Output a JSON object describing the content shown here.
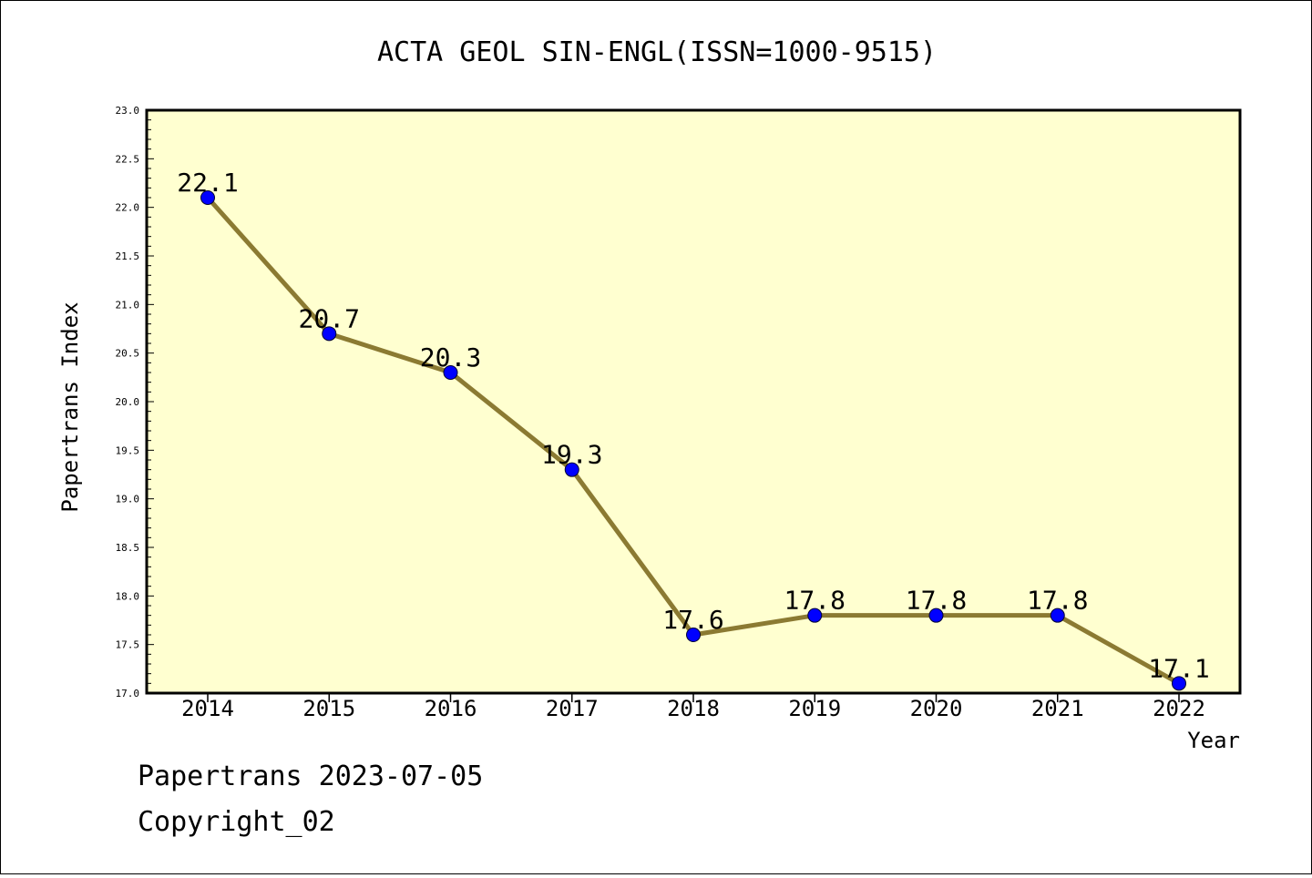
{
  "chart_data": {
    "type": "line",
    "title": "ACTA GEOL SIN-ENGL(ISSN=1000-9515)",
    "xlabel": "Year",
    "ylabel": "Papertrans Index",
    "categories": [
      "2014",
      "2015",
      "2016",
      "2017",
      "2018",
      "2019",
      "2020",
      "2021",
      "2022"
    ],
    "values": [
      22.1,
      20.7,
      20.3,
      19.3,
      17.6,
      17.8,
      17.8,
      17.8,
      17.1
    ],
    "data_labels": [
      "22.1",
      "20.7",
      "20.3",
      "19.3",
      "17.6",
      "17.8",
      "17.8",
      "17.8",
      "17.1"
    ],
    "ylim": [
      17.0,
      23.0
    ],
    "y_ticks": [
      "17.0",
      "17.5",
      "18.0",
      "18.5",
      "19.0",
      "19.5",
      "20.0",
      "20.5",
      "21.0",
      "21.5",
      "22.0",
      "22.5",
      "23.0"
    ],
    "grid": false,
    "colors": {
      "plot_background": "#ffffd0",
      "line": "#8b7a32",
      "marker": "#0000ff"
    }
  },
  "footer": {
    "line1": "Papertrans 2023-07-05",
    "line2": "Copyright_02"
  }
}
